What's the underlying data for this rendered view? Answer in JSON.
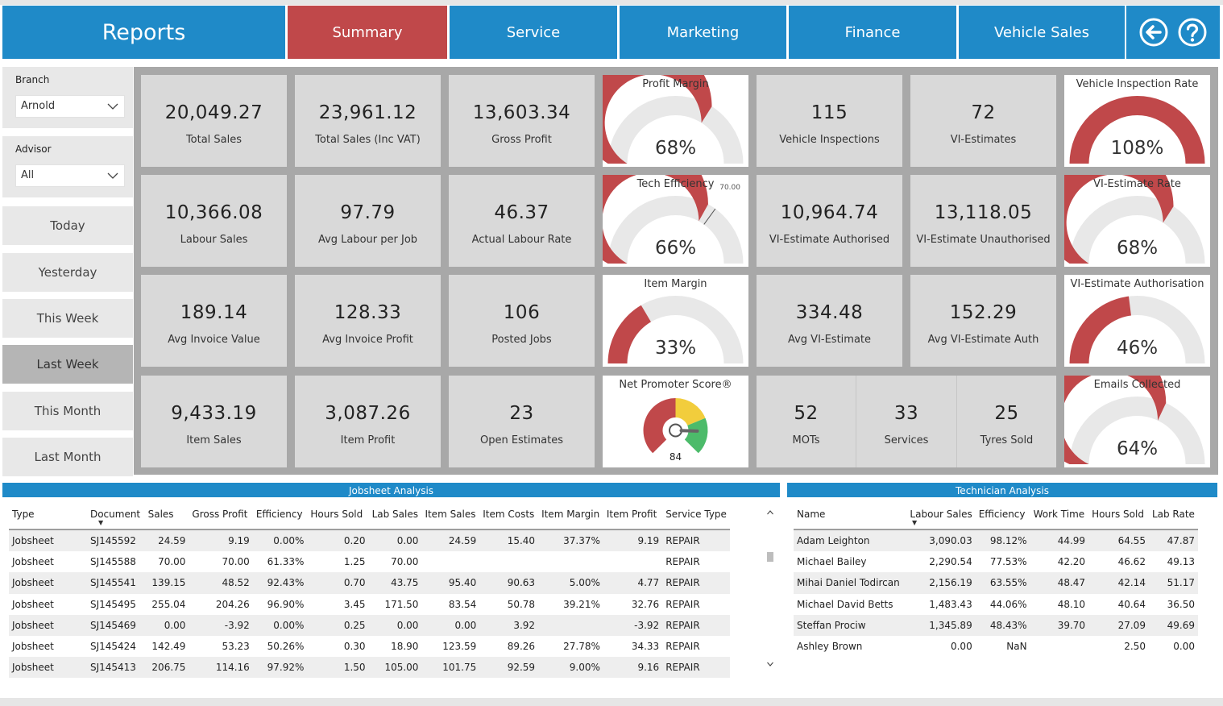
{
  "header": {
    "title": "Reports",
    "tabs": [
      {
        "label": "Summary",
        "active": true
      },
      {
        "label": "Service",
        "active": false
      },
      {
        "label": "Marketing",
        "active": false
      },
      {
        "label": "Finance",
        "active": false
      },
      {
        "label": "Vehicle Sales",
        "active": false
      }
    ],
    "icons": [
      "back-arrow-icon",
      "help-icon"
    ]
  },
  "filters": {
    "branch_label": "Branch",
    "branch_value": "Arnold",
    "advisor_label": "Advisor",
    "advisor_value": "All",
    "date_buttons": [
      {
        "label": "Today",
        "selected": false
      },
      {
        "label": "Yesterday",
        "selected": false
      },
      {
        "label": "This Week",
        "selected": false
      },
      {
        "label": "Last Week",
        "selected": true
      },
      {
        "label": "This Month",
        "selected": false
      },
      {
        "label": "Last Month",
        "selected": false
      }
    ]
  },
  "kpis": {
    "total_sales": {
      "value": "20,049.27",
      "label": "Total Sales"
    },
    "total_sales_inc_vat": {
      "value": "23,961.12",
      "label": "Total Sales (Inc VAT)"
    },
    "gross_profit": {
      "value": "13,603.34",
      "label": "Gross Profit"
    },
    "vehicle_inspections": {
      "value": "115",
      "label": "Vehicle Inspections"
    },
    "vi_estimates": {
      "value": "72",
      "label": "VI-Estimates"
    },
    "labour_sales": {
      "value": "10,366.08",
      "label": "Labour Sales"
    },
    "avg_labour_per_job": {
      "value": "97.79",
      "label": "Avg Labour per Job"
    },
    "actual_labour_rate": {
      "value": "46.37",
      "label": "Actual Labour Rate"
    },
    "vi_estimate_authorised": {
      "value": "10,964.74",
      "label": "VI-Estimate Authorised"
    },
    "vi_estimate_unauthorised": {
      "value": "13,118.05",
      "label": "VI-Estimate Unauthorised"
    },
    "avg_invoice_value": {
      "value": "189.14",
      "label": "Avg Invoice Value"
    },
    "avg_invoice_profit": {
      "value": "128.33",
      "label": "Avg Invoice Profit"
    },
    "posted_jobs": {
      "value": "106",
      "label": "Posted Jobs"
    },
    "avg_vi_estimate": {
      "value": "334.48",
      "label": "Avg VI-Estimate"
    },
    "avg_vi_estimate_auth": {
      "value": "152.29",
      "label": "Avg VI-Estimate Auth"
    },
    "item_sales": {
      "value": "9,433.19",
      "label": "Item Sales"
    },
    "item_profit": {
      "value": "3,087.26",
      "label": "Item Profit"
    },
    "open_estimates": {
      "value": "23",
      "label": "Open Estimates"
    },
    "mots": {
      "value": "52",
      "label": "MOTs"
    },
    "services": {
      "value": "33",
      "label": "Services"
    },
    "tyres_sold": {
      "value": "25",
      "label": "Tyres Sold"
    }
  },
  "gauges": {
    "profit_margin": {
      "title": "Profit Margin",
      "display": "68%",
      "fraction": 0.68
    },
    "tech_efficiency": {
      "title": "Tech Efficiency",
      "display": "66%",
      "fraction": 0.66,
      "target": "70.00",
      "target_fraction": 0.7
    },
    "item_margin": {
      "title": "Item Margin",
      "display": "33%",
      "fraction": 0.33
    },
    "vehicle_inspection_rate": {
      "title": "Vehicle Inspection Rate",
      "display": "108%",
      "fraction": 1.0
    },
    "vi_estimate_rate": {
      "title": "VI-Estimate Rate",
      "display": "68%",
      "fraction": 0.68
    },
    "vi_estimate_authorisation": {
      "title": "VI-Estimate Authorisation",
      "display": "46%",
      "fraction": 0.46
    },
    "emails_collected": {
      "title": "Emails Collected",
      "display": "64%",
      "fraction": 0.64
    },
    "net_promoter": {
      "title": "Net Promoter Score®",
      "display": "84",
      "score": 84
    }
  },
  "colors": {
    "accent_blue": "#1f8ac8",
    "accent_red": "#c0484a",
    "gauge_track": "#e8e8e8",
    "nps_yellow": "#f2cd3c",
    "nps_green": "#4cbb6a"
  },
  "jobsheet": {
    "title": "Jobsheet Analysis",
    "columns": [
      "Type",
      "Document",
      "Sales",
      "Gross Profit",
      "Efficiency",
      "Hours Sold",
      "Lab Sales",
      "Item Sales",
      "Item Costs",
      "Item Margin",
      "Item Profit",
      "Service Type"
    ],
    "rows": [
      [
        "Jobsheet",
        "SJ145592",
        "24.59",
        "9.19",
        "0.00%",
        "0.20",
        "0.00",
        "24.59",
        "15.40",
        "37.37%",
        "9.19",
        "REPAIR"
      ],
      [
        "Jobsheet",
        "SJ145588",
        "70.00",
        "70.00",
        "61.33%",
        "1.25",
        "70.00",
        "",
        "",
        "",
        "",
        "REPAIR"
      ],
      [
        "Jobsheet",
        "SJ145541",
        "139.15",
        "48.52",
        "92.43%",
        "0.70",
        "43.75",
        "95.40",
        "90.63",
        "5.00%",
        "4.77",
        "REPAIR"
      ],
      [
        "Jobsheet",
        "SJ145495",
        "255.04",
        "204.26",
        "96.90%",
        "3.45",
        "171.50",
        "83.54",
        "50.78",
        "39.21%",
        "32.76",
        "REPAIR"
      ],
      [
        "Jobsheet",
        "SJ145469",
        "0.00",
        "-3.92",
        "0.00%",
        "0.25",
        "0.00",
        "0.00",
        "3.92",
        "",
        "-3.92",
        "REPAIR"
      ],
      [
        "Jobsheet",
        "SJ145424",
        "142.49",
        "53.23",
        "50.26%",
        "0.30",
        "18.90",
        "123.59",
        "89.26",
        "27.78%",
        "34.33",
        "REPAIR"
      ],
      [
        "Jobsheet",
        "SJ145413",
        "206.75",
        "114.16",
        "97.92%",
        "1.50",
        "105.00",
        "101.75",
        "92.59",
        "9.00%",
        "9.16",
        "REPAIR"
      ]
    ]
  },
  "technician": {
    "title": "Technician Analysis",
    "columns": [
      "Name",
      "Labour Sales",
      "Efficiency",
      "Work Time",
      "Hours Sold",
      "Lab Rate"
    ],
    "rows": [
      [
        "Adam Leighton",
        "3,090.03",
        "98.12%",
        "44.99",
        "64.55",
        "47.87"
      ],
      [
        "Michael Bailey",
        "2,290.54",
        "77.53%",
        "42.20",
        "46.62",
        "49.13"
      ],
      [
        "Mihai Daniel Todircan",
        "2,156.19",
        "63.55%",
        "48.47",
        "42.14",
        "51.17"
      ],
      [
        "Michael David Betts",
        "1,483.43",
        "44.06%",
        "48.10",
        "40.64",
        "36.50"
      ],
      [
        "Steffan Prociw",
        "1,345.89",
        "48.43%",
        "39.70",
        "27.09",
        "49.69"
      ],
      [
        "Ashley Brown",
        "0.00",
        "NaN",
        "",
        "2.50",
        "0.00"
      ]
    ]
  }
}
